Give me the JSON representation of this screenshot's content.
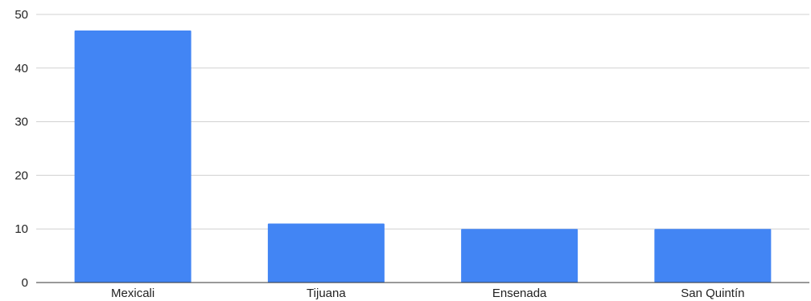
{
  "colors": {
    "bar": "#4285f4",
    "grid": "#d0d0d0",
    "axis": "#333333",
    "text": "#222222"
  },
  "chart_data": {
    "type": "bar",
    "categories": [
      "Mexicali",
      "Tijuana",
      "Ensenada",
      "San Quintín"
    ],
    "values": [
      47,
      11,
      10,
      10
    ],
    "ylim": [
      0,
      50
    ],
    "yticks": [
      0,
      10,
      20,
      30,
      40,
      50
    ],
    "grid": true,
    "legend": "none"
  }
}
